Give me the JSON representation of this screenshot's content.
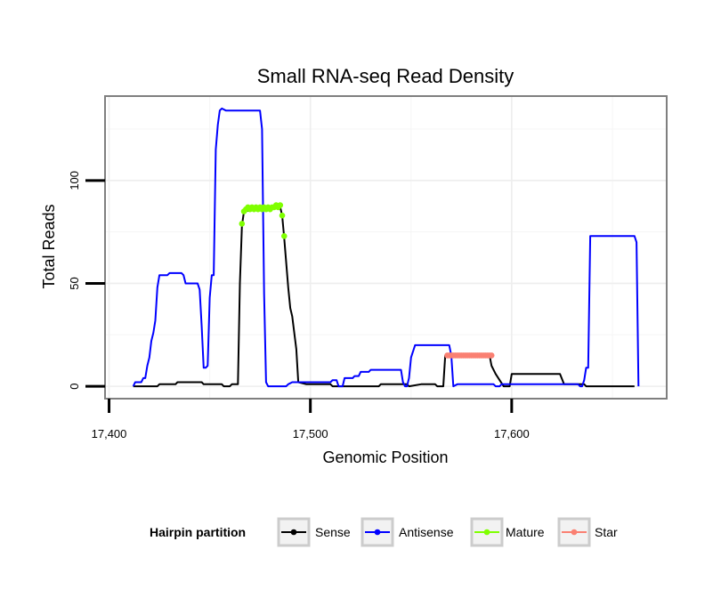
{
  "chart_data": {
    "type": "line",
    "title": "Small RNA-seq Read Density",
    "xlabel": "Genomic Position",
    "ylabel": "Total Reads",
    "xlim": [
      17398,
      17677
    ],
    "ylim": [
      -6,
      141
    ],
    "x_ticks": [
      17400,
      17500,
      17600
    ],
    "x_tick_labels": [
      "17,400",
      "17,500",
      "17,600"
    ],
    "y_ticks": [
      0,
      50,
      100
    ],
    "y_tick_labels": [
      "0",
      "50",
      "100"
    ],
    "legend": {
      "title": "Hairpin partition",
      "position": "bottom",
      "entries": [
        {
          "label": "Sense",
          "color": "#000000"
        },
        {
          "label": "Antisense",
          "color": "#0000ff"
        },
        {
          "label": "Mature",
          "color": "#7fff00"
        },
        {
          "label": "Star",
          "color": "#fa8072"
        }
      ]
    },
    "series": [
      {
        "name": "Sense",
        "color": "#000000",
        "style": "line",
        "points": [
          [
            17412,
            0
          ],
          [
            17424,
            0
          ],
          [
            17425,
            1
          ],
          [
            17433,
            1
          ],
          [
            17434,
            2
          ],
          [
            17446,
            2
          ],
          [
            17447,
            1
          ],
          [
            17456,
            1
          ],
          [
            17457,
            0
          ],
          [
            17460,
            0
          ],
          [
            17461,
            1
          ],
          [
            17464,
            1
          ],
          [
            17465,
            50
          ],
          [
            17466,
            78
          ],
          [
            17467,
            85
          ],
          [
            17485,
            87
          ],
          [
            17486,
            83
          ],
          [
            17487,
            72
          ],
          [
            17489,
            48
          ],
          [
            17490,
            38
          ],
          [
            17491,
            34
          ],
          [
            17493,
            18
          ],
          [
            17494,
            2
          ],
          [
            17498,
            1
          ],
          [
            17510,
            1
          ],
          [
            17511,
            0
          ],
          [
            17534,
            0
          ],
          [
            17535,
            1
          ],
          [
            17548,
            1
          ],
          [
            17549,
            0
          ],
          [
            17555,
            1
          ],
          [
            17562,
            1
          ],
          [
            17563,
            0
          ],
          [
            17566,
            0
          ],
          [
            17567,
            15
          ],
          [
            17589,
            15
          ],
          [
            17590,
            10
          ],
          [
            17592,
            6
          ],
          [
            17594,
            3
          ],
          [
            17596,
            0
          ],
          [
            17599,
            0
          ],
          [
            17600,
            6
          ],
          [
            17624,
            6
          ],
          [
            17626,
            1
          ],
          [
            17636,
            1
          ],
          [
            17637,
            0
          ],
          [
            17661,
            0
          ]
        ]
      },
      {
        "name": "Antisense",
        "color": "#0000ff",
        "style": "line",
        "points": [
          [
            17412,
            0
          ],
          [
            17413,
            2
          ],
          [
            17416,
            2
          ],
          [
            17417,
            4
          ],
          [
            17418,
            4
          ],
          [
            17419,
            10
          ],
          [
            17420,
            14
          ],
          [
            17421,
            22
          ],
          [
            17422,
            26
          ],
          [
            17423,
            32
          ],
          [
            17424,
            48
          ],
          [
            17425,
            54
          ],
          [
            17429,
            54
          ],
          [
            17430,
            55
          ],
          [
            17436,
            55
          ],
          [
            17437,
            54
          ],
          [
            17438,
            50
          ],
          [
            17444,
            50
          ],
          [
            17445,
            47
          ],
          [
            17446,
            29
          ],
          [
            17447,
            9
          ],
          [
            17448,
            9
          ],
          [
            17449,
            10
          ],
          [
            17450,
            43
          ],
          [
            17451,
            54
          ],
          [
            17452,
            54
          ],
          [
            17453,
            115
          ],
          [
            17454,
            127
          ],
          [
            17455,
            134
          ],
          [
            17456,
            135
          ],
          [
            17458,
            134
          ],
          [
            17475,
            134
          ],
          [
            17476,
            125
          ],
          [
            17477,
            45
          ],
          [
            17478,
            2
          ],
          [
            17479,
            0
          ],
          [
            17488,
            0
          ],
          [
            17489,
            1
          ],
          [
            17491,
            2
          ],
          [
            17510,
            2
          ],
          [
            17511,
            3
          ],
          [
            17513,
            3
          ],
          [
            17514,
            0
          ],
          [
            17516,
            0
          ],
          [
            17517,
            4
          ],
          [
            17521,
            4
          ],
          [
            17522,
            5
          ],
          [
            17524,
            5
          ],
          [
            17525,
            7
          ],
          [
            17529,
            7
          ],
          [
            17530,
            8
          ],
          [
            17545,
            8
          ],
          [
            17546,
            2
          ],
          [
            17547,
            0
          ],
          [
            17548,
            0
          ],
          [
            17549,
            4
          ],
          [
            17550,
            14
          ],
          [
            17552,
            20
          ],
          [
            17569,
            20
          ],
          [
            17570,
            15
          ],
          [
            17571,
            0
          ],
          [
            17573,
            1
          ],
          [
            17591,
            1
          ],
          [
            17592,
            0
          ],
          [
            17594,
            0
          ],
          [
            17595,
            1
          ],
          [
            17633,
            1
          ],
          [
            17634,
            0
          ],
          [
            17635,
            0
          ],
          [
            17636,
            3
          ],
          [
            17637,
            9
          ],
          [
            17638,
            9
          ],
          [
            17639,
            73
          ],
          [
            17661,
            73
          ],
          [
            17662,
            70
          ],
          [
            17663,
            0
          ]
        ]
      },
      {
        "name": "Mature",
        "color": "#7fff00",
        "style": "points",
        "points": [
          [
            17466,
            79
          ],
          [
            17467,
            85
          ],
          [
            17468,
            86
          ],
          [
            17469,
            87
          ],
          [
            17470,
            86
          ],
          [
            17471,
            87
          ],
          [
            17472,
            86
          ],
          [
            17473,
            87
          ],
          [
            17474,
            86
          ],
          [
            17475,
            87
          ],
          [
            17476,
            86
          ],
          [
            17477,
            87
          ],
          [
            17478,
            86
          ],
          [
            17479,
            87
          ],
          [
            17480,
            86
          ],
          [
            17481,
            87
          ],
          [
            17482,
            87
          ],
          [
            17483,
            88
          ],
          [
            17484,
            87
          ],
          [
            17485,
            88
          ],
          [
            17486,
            83
          ],
          [
            17487,
            73
          ]
        ]
      },
      {
        "name": "Star",
        "color": "#fa8072",
        "style": "points",
        "points": [
          [
            17568,
            15
          ],
          [
            17569,
            15
          ],
          [
            17570,
            15
          ],
          [
            17571,
            15
          ],
          [
            17572,
            15
          ],
          [
            17573,
            15
          ],
          [
            17574,
            15
          ],
          [
            17575,
            15
          ],
          [
            17576,
            15
          ],
          [
            17577,
            15
          ],
          [
            17578,
            15
          ],
          [
            17579,
            15
          ],
          [
            17580,
            15
          ],
          [
            17581,
            15
          ],
          [
            17582,
            15
          ],
          [
            17583,
            15
          ],
          [
            17584,
            15
          ],
          [
            17585,
            15
          ],
          [
            17586,
            15
          ],
          [
            17587,
            15
          ],
          [
            17588,
            15
          ],
          [
            17589,
            15
          ],
          [
            17590,
            15
          ]
        ]
      }
    ]
  }
}
